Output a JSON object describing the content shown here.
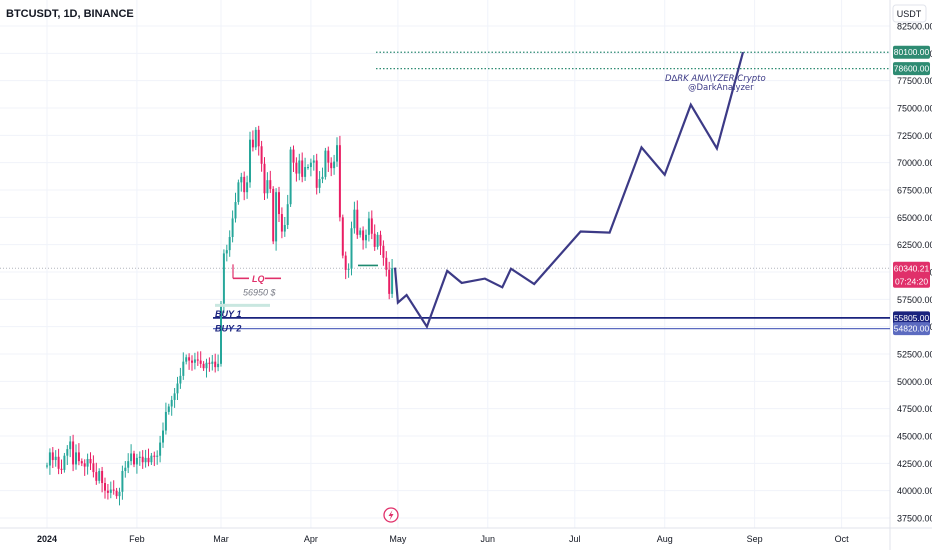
{
  "header": {
    "symbol_title": "BTCUSDT, 1D, BINANCE"
  },
  "price_axis": {
    "currency_label": "USDT"
  },
  "colors": {
    "up": "#26a69a",
    "down": "#e91e63",
    "projection": "#3c3a86",
    "buy1": "#1a237e",
    "buy2": "#5c6bc0",
    "current": "#e0306a",
    "target": "#2e8b72",
    "grid": "#f0f3fa",
    "axis_text": "#131722"
  },
  "annotations": {
    "lq_label": "LQ",
    "lq_price_label": "56950 $",
    "buy1_label": "BUY 1",
    "buy2_label": "BUY 2",
    "watermark_title": "D∆RK ANΛ\\YZER Crypto",
    "watermark_handle": "@DarkAnalyzer",
    "footer_icon": "lightning-bolt-icon"
  },
  "chart_data": {
    "type": "candlestick",
    "title": "BTCUSDT, 1D, BINANCE",
    "xlabel": "",
    "ylabel": "USDT",
    "ylim": [
      36500,
      83500
    ],
    "x_tick_labels": [
      "2024",
      "Feb",
      "Mar",
      "Apr",
      "May",
      "Jun",
      "Jul",
      "Aug",
      "Sep",
      "Oct"
    ],
    "y_tick_labels": [
      "37500.00",
      "40000.00",
      "42500.00",
      "45000.00",
      "47500.00",
      "50000.00",
      "52500.00",
      "55000.00",
      "57500.00",
      "60000.00",
      "62500.00",
      "65000.00",
      "67500.00",
      "70000.00",
      "72500.00",
      "75000.00",
      "77500.00",
      "80000.00",
      "82500.00"
    ],
    "y_ticks": [
      37500,
      40000,
      42500,
      45000,
      47500,
      50000,
      52500,
      55000,
      57500,
      60000,
      62500,
      65000,
      67500,
      70000,
      72500,
      75000,
      77500,
      80000,
      82500
    ],
    "price_tags": [
      {
        "price": 80100,
        "label": "80100.00",
        "kind": "target"
      },
      {
        "price": 78600,
        "label": "78600.00",
        "kind": "target"
      },
      {
        "price": 60340.21,
        "label": "60340.21",
        "kind": "current",
        "countdown": "07:24:20"
      },
      {
        "price": 55805,
        "label": "55805.00",
        "kind": "buy1"
      },
      {
        "price": 54820,
        "label": "54820.00",
        "kind": "buy2"
      }
    ],
    "candles_start": "2024-01-01",
    "closes": [
      42300,
      43500,
      42800,
      43100,
      42000,
      41900,
      43200,
      43800,
      44500,
      42400,
      43500,
      42700,
      42500,
      42200,
      42900,
      42500,
      41700,
      40900,
      41800,
      40700,
      40000,
      39800,
      40100,
      40000,
      39500,
      39900,
      41800,
      42100,
      42700,
      43400,
      42400,
      43000,
      43100,
      42600,
      43000,
      42600,
      43200,
      43100,
      43200,
      44400,
      45500,
      47200,
      47700,
      48300,
      48900,
      49800,
      50500,
      51800,
      52200,
      51900,
      51700,
      52000,
      51900,
      51600,
      51200,
      51700,
      51600,
      51800,
      51300,
      51600,
      57100,
      61700,
      62000,
      63200,
      64900,
      66400,
      68200,
      68700,
      67300,
      68200,
      72100,
      71400,
      73000,
      71500,
      69900,
      67200,
      68400,
      67600,
      62800,
      67300,
      65300,
      63700,
      64300,
      66200,
      71200,
      70000,
      69000,
      70200,
      68700,
      69600,
      69600,
      70000,
      70200,
      67700,
      68500,
      68700,
      71100,
      70000,
      69500,
      70100,
      71600,
      65000,
      61500,
      60200,
      60300,
      64000,
      65700,
      63400,
      63800,
      62900,
      63400,
      64900,
      63500,
      62300,
      63400,
      62400,
      61300,
      60200,
      58000,
      60340
    ],
    "lq_level": 56950,
    "buy1": 55805,
    "buy2": 54820,
    "targets": [
      80100,
      78600
    ],
    "projection_path": [
      {
        "date": "2024-04-30",
        "price": 60400
      },
      {
        "date": "2024-05-01",
        "price": 57200
      },
      {
        "date": "2024-05-04",
        "price": 57900
      },
      {
        "date": "2024-05-11",
        "price": 55000
      },
      {
        "date": "2024-05-18",
        "price": 60100
      },
      {
        "date": "2024-05-23",
        "price": 59000
      },
      {
        "date": "2024-05-31",
        "price": 59400
      },
      {
        "date": "2024-06-06",
        "price": 58600
      },
      {
        "date": "2024-06-09",
        "price": 60300
      },
      {
        "date": "2024-06-17",
        "price": 58900
      },
      {
        "date": "2024-07-03",
        "price": 63700
      },
      {
        "date": "2024-07-13",
        "price": 63600
      },
      {
        "date": "2024-07-24",
        "price": 71400
      },
      {
        "date": "2024-08-01",
        "price": 68900
      },
      {
        "date": "2024-08-10",
        "price": 75300
      },
      {
        "date": "2024-08-19",
        "price": 71300
      },
      {
        "date": "2024-08-28",
        "price": 80100
      }
    ]
  }
}
